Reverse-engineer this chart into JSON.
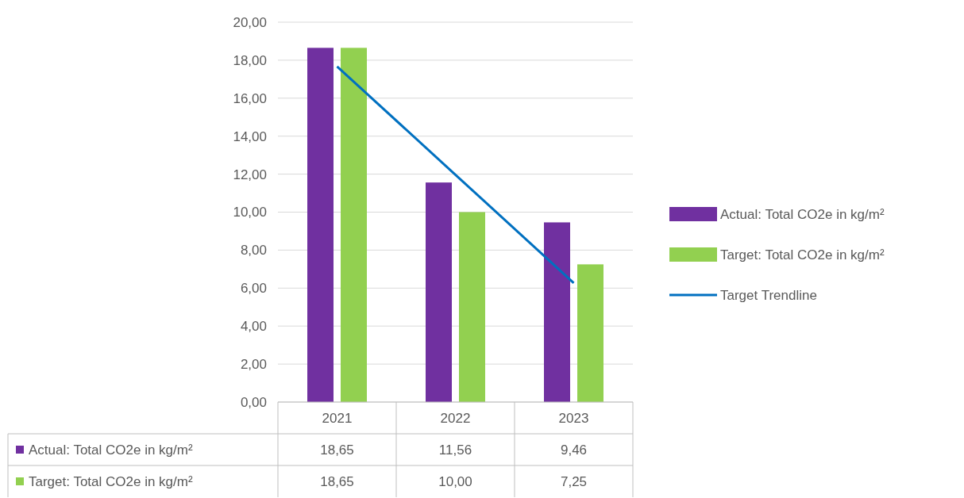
{
  "chart_data": {
    "type": "bar",
    "categories": [
      "2021",
      "2022",
      "2023"
    ],
    "series": [
      {
        "name": "Actual: Total CO2e in kg/m²",
        "color": "#7030a0",
        "values": [
          18.65,
          11.56,
          9.46
        ]
      },
      {
        "name": "Target: Total CO2e in kg/m²",
        "color": "#92d050",
        "values": [
          18.65,
          10.0,
          7.25
        ]
      },
      {
        "name": "Target Trendline",
        "type": "line",
        "color": "#0070c0",
        "values": [
          17.67,
          11.97,
          6.27
        ]
      }
    ],
    "value_labels": [
      [
        "18,65",
        "11,56",
        "9,46"
      ],
      [
        "18,65",
        "10,00",
        "7,25"
      ],
      null
    ],
    "ylim": [
      0,
      20
    ],
    "yticks": [
      {
        "value": 0,
        "label": "0,00"
      },
      {
        "value": 2,
        "label": "2,00"
      },
      {
        "value": 4,
        "label": "4,00"
      },
      {
        "value": 6,
        "label": "6,00"
      },
      {
        "value": 8,
        "label": "8,00"
      },
      {
        "value": 10,
        "label": "10,00"
      },
      {
        "value": 12,
        "label": "12,00"
      },
      {
        "value": 14,
        "label": "14,00"
      },
      {
        "value": 16,
        "label": "16,00"
      },
      {
        "value": 18,
        "label": "18,00"
      },
      {
        "value": 20,
        "label": "20,00"
      }
    ],
    "grid": "y",
    "legend": "right",
    "marker": "none",
    "line_style": "solid"
  }
}
